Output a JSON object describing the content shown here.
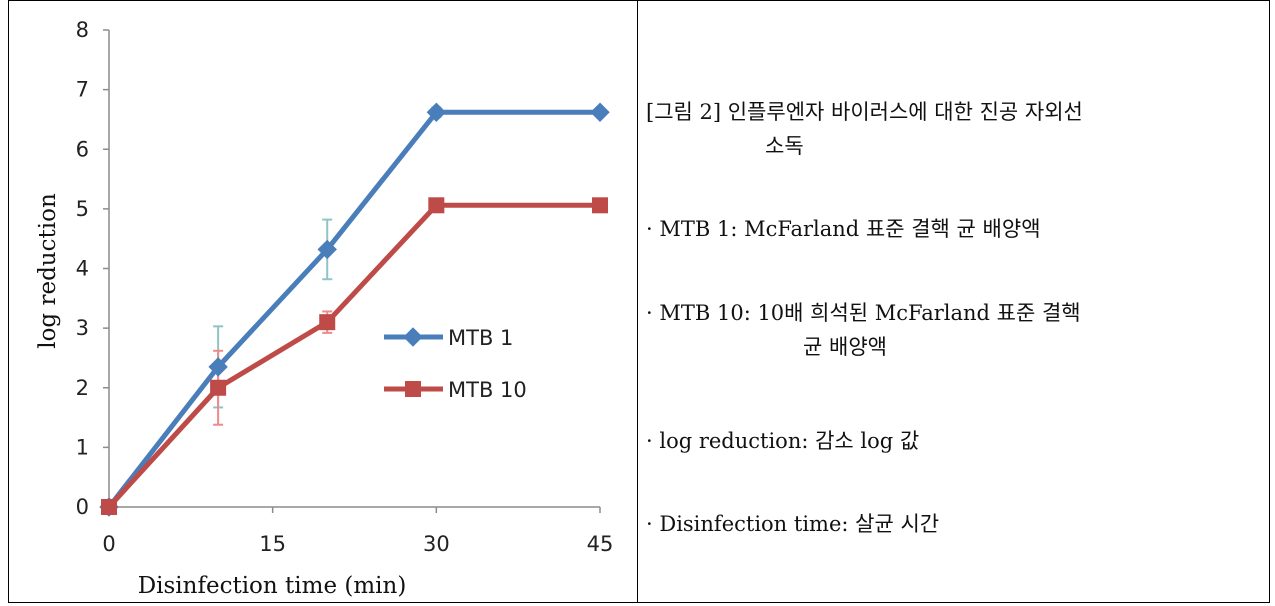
{
  "chart_data": {
    "type": "line",
    "x": [
      0,
      10,
      20,
      30,
      45
    ],
    "xticks": [
      "0",
      "15",
      "30",
      "45"
    ],
    "xtick_values": [
      0,
      15,
      30,
      45
    ],
    "xlim": [
      0,
      45
    ],
    "yticks": [
      "0",
      "1",
      "2",
      "3",
      "4",
      "5",
      "6",
      "7",
      "8"
    ],
    "ylim": [
      0,
      8
    ],
    "xlabel": "Disinfection time (min)",
    "ylabel": "log reduction",
    "grid": false,
    "legend_position": "center-right",
    "series": [
      {
        "name": "MTB 1",
        "values": [
          0,
          2.35,
          4.32,
          6.62,
          6.62
        ],
        "error": [
          0,
          0.68,
          0.5,
          0.08,
          0
        ],
        "color": "#4a7ebb",
        "error_color": "#8fc4c4",
        "marker": "diamond"
      },
      {
        "name": "MTB 10",
        "values": [
          0,
          2.0,
          3.1,
          5.06,
          5.06
        ],
        "error": [
          0,
          0.62,
          0.18,
          0.05,
          0
        ],
        "color": "#be4b48",
        "error_color": "#ee8a8a",
        "marker": "square"
      }
    ]
  },
  "caption": {
    "title_line1": "[그림 2] 인플루엔자 바이러스에 대한 진공 자외선",
    "title_line2": "소독",
    "mtb1": "· MTB 1: McFarland 표준 결핵 균 배양액",
    "mtb10_line1": "· MTB 10: 10배 희석된 McFarland 표준 결핵",
    "mtb10_line2": "균 배양액",
    "log_reduction": "· log reduction: 감소 log 값",
    "disinfection_time": "· Disinfection time: 살균 시간"
  }
}
